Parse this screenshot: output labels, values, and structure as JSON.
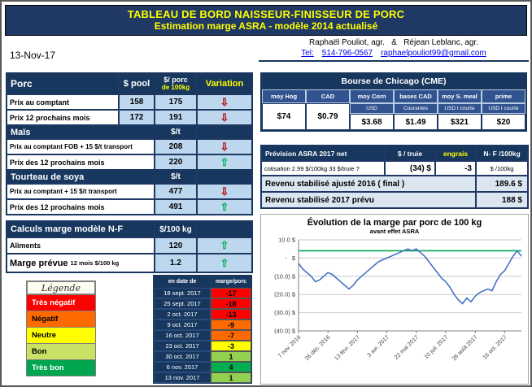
{
  "banner": {
    "title1": "TABLEAU DE BORD NAISSEUR-FINISSEUR DE PORC",
    "title2": "Estimation marge ASRA - modèle 2014 actualisé"
  },
  "date": "13-Nov-17",
  "contact": {
    "authors": "Raphaël Pouliot, agr.   &   Réjean Leblanc, agr.",
    "tel_label": "Tel:",
    "tel": "514-796-0567",
    "email": "raphaelpouliot99@gmail.com"
  },
  "porc": {
    "title": "Porc",
    "col_pool": "$ pool",
    "col_porc_line1": "$/ porc",
    "col_porc_line2": "de 100kg",
    "col_variation": "Variation",
    "rows": [
      {
        "label": "Prix au comptant",
        "pool": "158",
        "porc": "175",
        "trend": "down"
      },
      {
        "label": "Prix 12 prochains mois",
        "pool": "172",
        "porc": "191",
        "trend": "down"
      }
    ]
  },
  "mais": {
    "title": "Maïs",
    "unit": "$/t",
    "rows": [
      {
        "label": "Prix au comptant FOB + 15 $/t transport",
        "value": "208",
        "trend": "down"
      },
      {
        "label": "Prix des 12 prochains mois",
        "value": "220",
        "trend": "up"
      }
    ]
  },
  "soya": {
    "title": "Tourteau de soya",
    "unit": "$/t",
    "rows": [
      {
        "label": "Prix au comptant + 15 $/t transport",
        "value": "477",
        "trend": "down"
      },
      {
        "label": "Prix des 12 prochains mois",
        "value": "491",
        "trend": "up"
      }
    ]
  },
  "calculs": {
    "title": "Calculs marge  modèle N-F",
    "unit": "$/100 kg",
    "rows": [
      {
        "label": "Aliments",
        "sublabel": "",
        "value": "120",
        "trend": "up"
      },
      {
        "label": "Marge prévue",
        "sublabel": "12 mois $/100 kg",
        "value": "1.2",
        "trend": "up"
      }
    ]
  },
  "legende": {
    "title": "Légende",
    "items": [
      {
        "label": "Très négatif",
        "color": "#FE0000",
        "text_color": "#FFFFFF"
      },
      {
        "label": "Négatif",
        "color": "#FF6A00",
        "text_color": "#000000"
      },
      {
        "label": "Neutre",
        "color": "#FFFF00",
        "text_color": "#000000"
      },
      {
        "label": "Bon",
        "color": "#C9E265",
        "text_color": "#000000"
      },
      {
        "label": "Très bon",
        "color": "#00A550",
        "text_color": "#FFFFFF"
      }
    ]
  },
  "historique": {
    "col_date": "en date de",
    "col_marge": "marge/porc",
    "rows": [
      {
        "date": "18 sept. 2017",
        "marge": "-17",
        "color": "#FE0000",
        "text_color": "#000000"
      },
      {
        "date": "25 sept. 2017",
        "marge": "-18",
        "color": "#FE0000",
        "text_color": "#000000"
      },
      {
        "date": "2 oct. 2017",
        "marge": "-13",
        "color": "#FE0000",
        "text_color": "#000000"
      },
      {
        "date": "9 oct. 2017",
        "marge": "-9",
        "color": "#FF6A00",
        "text_color": "#000000"
      },
      {
        "date": "16 oct. 2017",
        "marge": "-7",
        "color": "#FF6A00",
        "text_color": "#000000"
      },
      {
        "date": "23 oct. 2017",
        "marge": "-3",
        "color": "#FFFF00",
        "text_color": "#000000"
      },
      {
        "date": "30 oct. 2017",
        "marge": "1",
        "color": "#92D050",
        "text_color": "#000000"
      },
      {
        "date": "6 nov. 2017",
        "marge": "4",
        "color": "#00B050",
        "text_color": "#000000"
      },
      {
        "date": "13 nov. 2017",
        "marge": "1",
        "color": "#92D050",
        "text_color": "#000000"
      }
    ]
  },
  "cme": {
    "title": "Bourse de Chicago (CME)",
    "columns": [
      {
        "header": "moy Hog",
        "sub": "",
        "value": "$74"
      },
      {
        "header": "CAD",
        "sub": "",
        "value": "$0.79"
      },
      {
        "header": "moy Corn",
        "sub": "USD",
        "value": "$3.68"
      },
      {
        "header": "bases CAD",
        "sub": "Courantes",
        "value": "$1.49"
      },
      {
        "header": "moy S. meal",
        "sub": "USD t courte",
        "value": "$321"
      },
      {
        "header": "prime",
        "sub": "USD t courte",
        "value": "$20"
      }
    ]
  },
  "asra": {
    "title": "Prévision ASRA 2017 net",
    "col1": "$ / truie",
    "col2": "engrais",
    "col3": "N- F /100kg",
    "cotisation_label": "cotisation 2.99 $/100kg  33 $/truie ?",
    "cotisation_truie": "(34) $",
    "cotisation_engrais": "-3",
    "cotisation_unit": "$ /100kg",
    "revenu2016_label": "Revenu stabilisé ajusté 2016 ( final )",
    "revenu2016_value": "189.6 $",
    "revenu2017_label": "Revenu stabilisé 2017 prévu",
    "revenu2017_value": "188 $"
  },
  "chart_data": {
    "type": "line",
    "title": "Évolution de la marge par porc de 100 kg",
    "subtitle": "avant effet ASRA",
    "ylim": [
      -40,
      10
    ],
    "ytick_values": [
      10,
      0,
      -10,
      -20,
      -30,
      -40
    ],
    "ytick_labels": [
      "10.0 $",
      "-   $",
      "(10.0) $",
      "(20.0) $",
      "(30.0) $",
      "(40.0) $"
    ],
    "xtick_indices": [
      0,
      7,
      14,
      21,
      28,
      35,
      42,
      49
    ],
    "xtick_labels": [
      "7 nov. 2016",
      "26 déc. 2016",
      "13 févr. 2017",
      "3 avr. 2017",
      "22 mai 2017",
      "10 juil. 2017",
      "28 août 2017",
      "16 oct. 2017"
    ],
    "grid": true,
    "legend_position": "none",
    "series": [
      {
        "name": "marge par porc",
        "color": "#4472C4",
        "values": [
          -3,
          -6,
          -8,
          -10,
          -13,
          -12,
          -10,
          -8,
          -9,
          -11,
          -13,
          -15,
          -17,
          -15,
          -12,
          -10,
          -8,
          -6,
          -4,
          -2,
          -1,
          0,
          1,
          2,
          3,
          4,
          5,
          4,
          5,
          3,
          1,
          -2,
          -5,
          -8,
          -11,
          -13,
          -16,
          -20,
          -23,
          -25,
          -22,
          -24,
          -21,
          -19,
          -18,
          -17,
          -18,
          -13,
          -9,
          -7,
          -3,
          1,
          4,
          1
        ]
      },
      {
        "name": "marge prévue (référence)",
        "color": "#00A550",
        "constant": 4
      }
    ]
  }
}
